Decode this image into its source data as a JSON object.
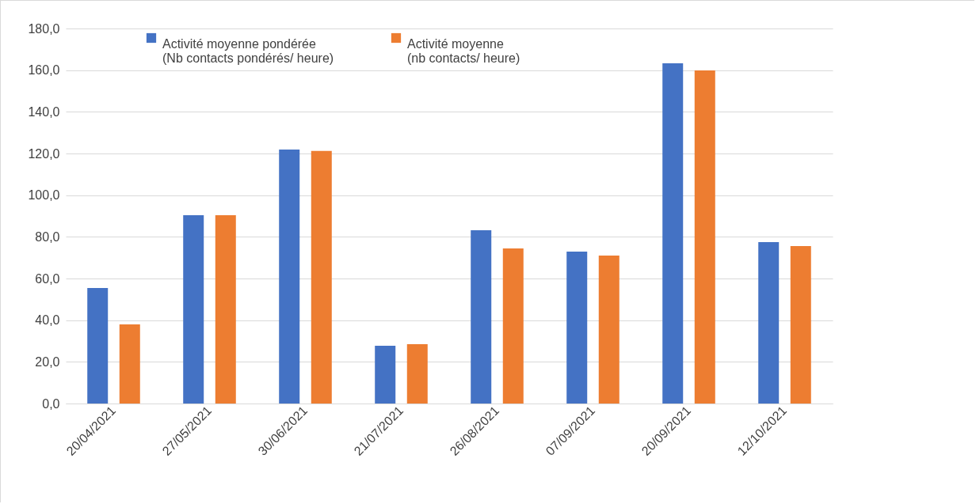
{
  "chart_data": {
    "type": "bar",
    "categories": [
      "20/04/2021",
      "27/05/2021",
      "30/06/2021",
      "21/07/2021",
      "26/08/2021",
      "07/09/2021",
      "20/09/2021",
      "12/10/2021"
    ],
    "series": [
      {
        "name": "Activité moyenne pondérée\n(Nb contacts pondérés/ heure)",
        "color": "#4472c4",
        "values": [
          55.4,
          90.4,
          121.9,
          27.7,
          83.2,
          72.9,
          163.3,
          77.5
        ]
      },
      {
        "name": "Activité moyenne\n(nb contacts/ heure)",
        "color": "#ed7d31",
        "values": [
          38.0,
          90.4,
          121.2,
          28.5,
          74.4,
          71.0,
          159.9,
          75.6
        ]
      }
    ],
    "ylim": [
      0,
      180
    ],
    "yticks": [
      {
        "value": 0,
        "label": "0,0"
      },
      {
        "value": 20,
        "label": "20,0"
      },
      {
        "value": 40,
        "label": "40,0"
      },
      {
        "value": 60,
        "label": "60,0"
      },
      {
        "value": 80,
        "label": "80,0"
      },
      {
        "value": 100,
        "label": "100,0"
      },
      {
        "value": 120,
        "label": "120,0"
      },
      {
        "value": 140,
        "label": "140,0"
      },
      {
        "value": 160,
        "label": "160,0"
      },
      {
        "value": 180,
        "label": "180,0"
      }
    ],
    "grid": "y",
    "legend": "top"
  }
}
